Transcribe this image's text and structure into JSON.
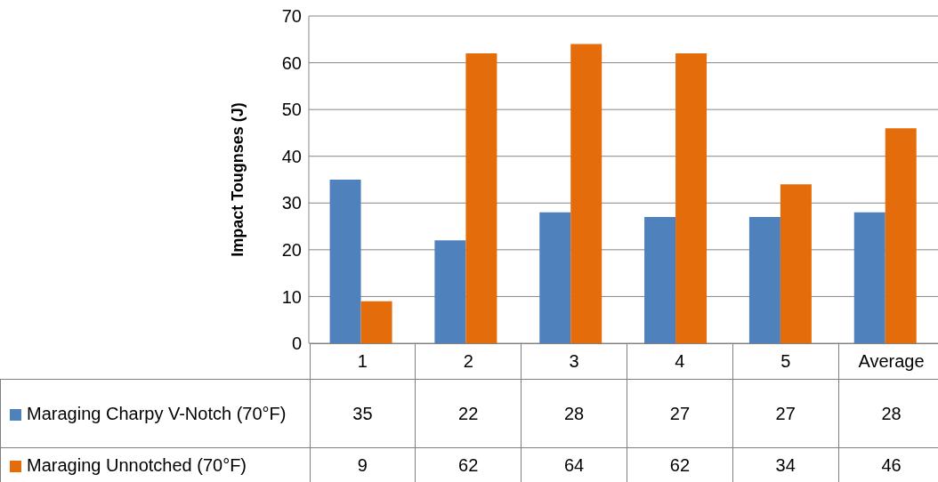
{
  "chart_data": {
    "type": "bar",
    "ylabel": "Impact Tougnses (J)",
    "categories": [
      "1",
      "2",
      "3",
      "4",
      "5",
      "Average"
    ],
    "series": [
      {
        "name": "Maraging Charpy V-Notch (70°F)",
        "color": "#4f81bd",
        "values": [
          35,
          22,
          28,
          27,
          27,
          28
        ]
      },
      {
        "name": "Maraging Unnotched (70°F)",
        "color": "#e46c0a",
        "values": [
          9,
          62,
          64,
          62,
          34,
          46
        ]
      }
    ],
    "ylim": [
      0,
      70
    ],
    "yticks": [
      0,
      10,
      20,
      30,
      40,
      50,
      60,
      70
    ],
    "grid": "y",
    "legend": "bottom left",
    "data_labels": true
  }
}
